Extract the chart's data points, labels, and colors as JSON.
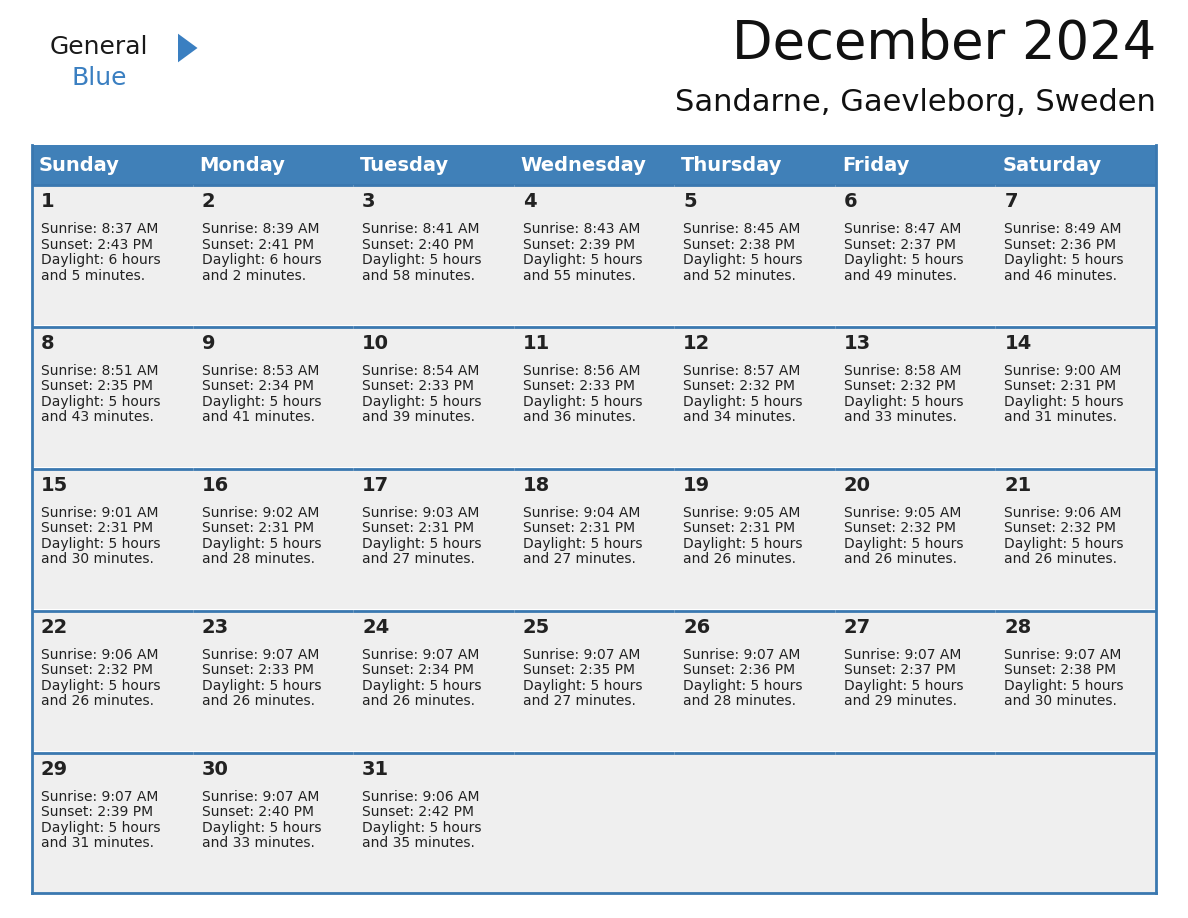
{
  "title": "December 2024",
  "subtitle": "Sandarne, Gaevleborg, Sweden",
  "header_bg_color": "#4080b8",
  "header_text_color": "#ffffff",
  "cell_bg_color": "#efefef",
  "separator_color": "#3a78b0",
  "day_names": [
    "Sunday",
    "Monday",
    "Tuesday",
    "Wednesday",
    "Thursday",
    "Friday",
    "Saturday"
  ],
  "weeks": [
    [
      {
        "day": 1,
        "sunrise": "8:37 AM",
        "sunset": "2:43 PM",
        "daylight": "6 hours and 5 minutes."
      },
      {
        "day": 2,
        "sunrise": "8:39 AM",
        "sunset": "2:41 PM",
        "daylight": "6 hours and 2 minutes."
      },
      {
        "day": 3,
        "sunrise": "8:41 AM",
        "sunset": "2:40 PM",
        "daylight": "5 hours and 58 minutes."
      },
      {
        "day": 4,
        "sunrise": "8:43 AM",
        "sunset": "2:39 PM",
        "daylight": "5 hours and 55 minutes."
      },
      {
        "day": 5,
        "sunrise": "8:45 AM",
        "sunset": "2:38 PM",
        "daylight": "5 hours and 52 minutes."
      },
      {
        "day": 6,
        "sunrise": "8:47 AM",
        "sunset": "2:37 PM",
        "daylight": "5 hours and 49 minutes."
      },
      {
        "day": 7,
        "sunrise": "8:49 AM",
        "sunset": "2:36 PM",
        "daylight": "5 hours and 46 minutes."
      }
    ],
    [
      {
        "day": 8,
        "sunrise": "8:51 AM",
        "sunset": "2:35 PM",
        "daylight": "5 hours and 43 minutes."
      },
      {
        "day": 9,
        "sunrise": "8:53 AM",
        "sunset": "2:34 PM",
        "daylight": "5 hours and 41 minutes."
      },
      {
        "day": 10,
        "sunrise": "8:54 AM",
        "sunset": "2:33 PM",
        "daylight": "5 hours and 39 minutes."
      },
      {
        "day": 11,
        "sunrise": "8:56 AM",
        "sunset": "2:33 PM",
        "daylight": "5 hours and 36 minutes."
      },
      {
        "day": 12,
        "sunrise": "8:57 AM",
        "sunset": "2:32 PM",
        "daylight": "5 hours and 34 minutes."
      },
      {
        "day": 13,
        "sunrise": "8:58 AM",
        "sunset": "2:32 PM",
        "daylight": "5 hours and 33 minutes."
      },
      {
        "day": 14,
        "sunrise": "9:00 AM",
        "sunset": "2:31 PM",
        "daylight": "5 hours and 31 minutes."
      }
    ],
    [
      {
        "day": 15,
        "sunrise": "9:01 AM",
        "sunset": "2:31 PM",
        "daylight": "5 hours and 30 minutes."
      },
      {
        "day": 16,
        "sunrise": "9:02 AM",
        "sunset": "2:31 PM",
        "daylight": "5 hours and 28 minutes."
      },
      {
        "day": 17,
        "sunrise": "9:03 AM",
        "sunset": "2:31 PM",
        "daylight": "5 hours and 27 minutes."
      },
      {
        "day": 18,
        "sunrise": "9:04 AM",
        "sunset": "2:31 PM",
        "daylight": "5 hours and 27 minutes."
      },
      {
        "day": 19,
        "sunrise": "9:05 AM",
        "sunset": "2:31 PM",
        "daylight": "5 hours and 26 minutes."
      },
      {
        "day": 20,
        "sunrise": "9:05 AM",
        "sunset": "2:32 PM",
        "daylight": "5 hours and 26 minutes."
      },
      {
        "day": 21,
        "sunrise": "9:06 AM",
        "sunset": "2:32 PM",
        "daylight": "5 hours and 26 minutes."
      }
    ],
    [
      {
        "day": 22,
        "sunrise": "9:06 AM",
        "sunset": "2:32 PM",
        "daylight": "5 hours and 26 minutes."
      },
      {
        "day": 23,
        "sunrise": "9:07 AM",
        "sunset": "2:33 PM",
        "daylight": "5 hours and 26 minutes."
      },
      {
        "day": 24,
        "sunrise": "9:07 AM",
        "sunset": "2:34 PM",
        "daylight": "5 hours and 26 minutes."
      },
      {
        "day": 25,
        "sunrise": "9:07 AM",
        "sunset": "2:35 PM",
        "daylight": "5 hours and 27 minutes."
      },
      {
        "day": 26,
        "sunrise": "9:07 AM",
        "sunset": "2:36 PM",
        "daylight": "5 hours and 28 minutes."
      },
      {
        "day": 27,
        "sunrise": "9:07 AM",
        "sunset": "2:37 PM",
        "daylight": "5 hours and 29 minutes."
      },
      {
        "day": 28,
        "sunrise": "9:07 AM",
        "sunset": "2:38 PM",
        "daylight": "5 hours and 30 minutes."
      }
    ],
    [
      {
        "day": 29,
        "sunrise": "9:07 AM",
        "sunset": "2:39 PM",
        "daylight": "5 hours and 31 minutes."
      },
      {
        "day": 30,
        "sunrise": "9:07 AM",
        "sunset": "2:40 PM",
        "daylight": "5 hours and 33 minutes."
      },
      {
        "day": 31,
        "sunrise": "9:06 AM",
        "sunset": "2:42 PM",
        "daylight": "5 hours and 35 minutes."
      },
      null,
      null,
      null,
      null
    ]
  ],
  "title_fontsize": 38,
  "subtitle_fontsize": 22,
  "header_fontsize": 14,
  "day_num_fontsize": 14,
  "cell_fontsize": 10,
  "logo_color_general": "#1a1a1a",
  "logo_color_blue": "#3a7fc1",
  "logo_triangle_color": "#3a7fc1",
  "fig_width": 11.88,
  "fig_height": 9.18,
  "fig_dpi": 100
}
